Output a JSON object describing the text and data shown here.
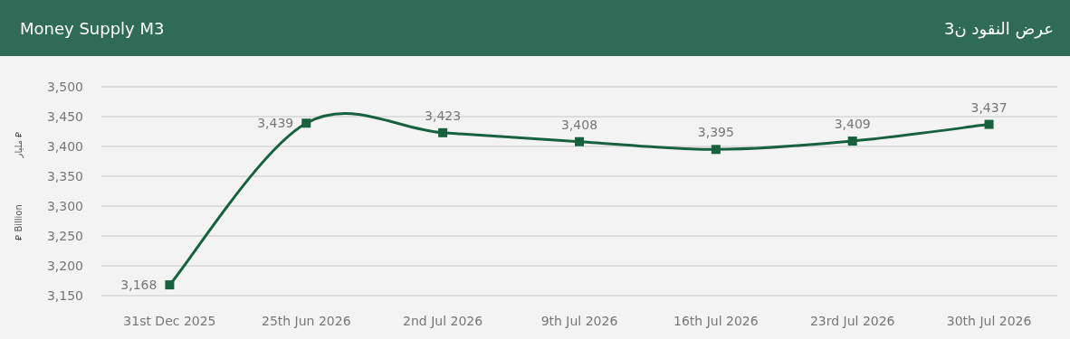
{
  "chart_data": {
    "type": "line",
    "title": "Money Supply M3",
    "subtitle": "عرض النقود ن3",
    "ylabel": "⃁ Billion",
    "annotations": [
      "مليار ⃁"
    ],
    "categories": [
      "31st Dec 2025",
      "25th Jun 2026",
      "2nd Jul 2026",
      "9th Jul 2026",
      "16th Jul 2026",
      "23rd Jul 2026",
      "30th Jul 2026"
    ],
    "series": [
      {
        "color": "#17613f",
        "values": [
          3168,
          3439,
          3423,
          3408,
          3395,
          3409,
          3437
        ],
        "value_labels": [
          "3,168",
          "3,439",
          "3,423",
          "3,408",
          "3,395",
          "3,409",
          "3,437"
        ]
      }
    ],
    "ylim": [
      3150,
      3500
    ],
    "yticks": [
      {
        "value": 3150,
        "label": "3,150"
      },
      {
        "value": 3200,
        "label": "3,200"
      },
      {
        "value": 3250,
        "label": "3,250"
      },
      {
        "value": 3300,
        "label": "3,300"
      },
      {
        "value": 3350,
        "label": "3,350"
      },
      {
        "value": 3400,
        "label": "3,400"
      },
      {
        "value": 3450,
        "label": "3,450"
      },
      {
        "value": 3500,
        "label": "3,500"
      }
    ],
    "grid": "y",
    "marker": "square",
    "line_style": "solid"
  }
}
